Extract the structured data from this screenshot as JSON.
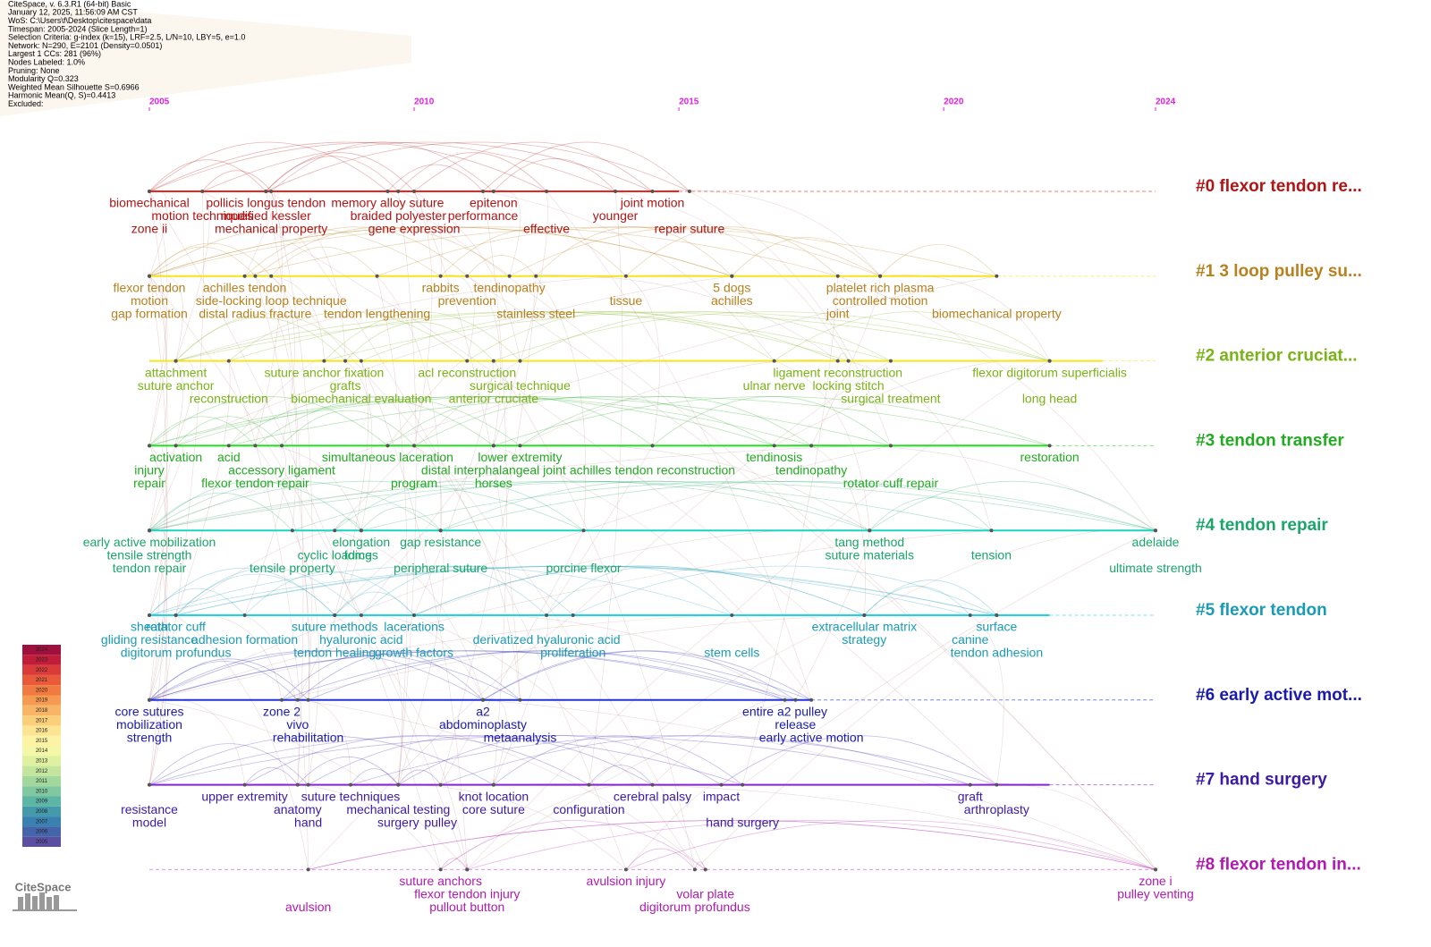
{
  "chart_data": {
    "type": "timeline",
    "info": [
      "CiteSpace, v. 6.3.R1 (64-bit) Basic",
      "January 12, 2025, 11:56:09 AM CST",
      "WoS: C:\\Users\\f\\Desktop\\citespace\\data",
      "Timespan: 2005-2024 (Slice Length=1)",
      "Selection Criteria: g-index (k=15), LRF=2.5, L/N=10, LBY=5, e=1.0",
      "Network: N=290, E=2101 (Density=0.0501)",
      "Largest 1 CCs: 281 (96%)",
      "Nodes Labeled: 1.0%",
      "Pruning: None",
      "Modularity Q=0.323",
      "Weighted Mean Silhouette S=0.6966",
      "Harmonic Mean(Q, S)=0.4413",
      "Excluded:"
    ],
    "xlim": [
      2005,
      2024
    ],
    "xticks": [
      2005,
      2010,
      2015,
      2020,
      2024
    ],
    "clusters": [
      {
        "label": "#0 flexor tendon re...",
        "color": "#b01515",
        "line_color": "#e8251f",
        "active_until": 2015,
        "terms": [
          {
            "text": "biomechanical",
            "year": 2005
          },
          {
            "text": "motion techniques",
            "year": 2006
          },
          {
            "text": "zone ii",
            "year": 2005
          },
          {
            "text": "pollicis longus tendon",
            "year": 2007.2
          },
          {
            "text": "modified kessler",
            "year": 2007.2
          },
          {
            "text": "mechanical property",
            "year": 2007.3
          },
          {
            "text": "memory alloy suture",
            "year": 2009.5
          },
          {
            "text": "braided polyester",
            "year": 2009.7
          },
          {
            "text": "gene expression",
            "year": 2010
          },
          {
            "text": "epitenon",
            "year": 2011.5
          },
          {
            "text": "performance",
            "year": 2011.3
          },
          {
            "text": "effective",
            "year": 2012.5
          },
          {
            "text": "joint motion",
            "year": 2014.5
          },
          {
            "text": "younger",
            "year": 2013.8
          },
          {
            "text": "repair suture",
            "year": 2015.2
          }
        ]
      },
      {
        "label": "#1 3 loop pulley su...",
        "color": "#b8801e",
        "line_color": "#f5e51a",
        "active_until": 2021,
        "terms": [
          {
            "text": "flexor tendon",
            "year": 2005
          },
          {
            "text": "motion",
            "year": 2005
          },
          {
            "text": "gap formation",
            "year": 2005
          },
          {
            "text": "achilles tendon",
            "year": 2006.8
          },
          {
            "text": "side-locking loop technique",
            "year": 2007.3
          },
          {
            "text": "distal radius fracture",
            "year": 2007
          },
          {
            "text": "rabbits",
            "year": 2010.5
          },
          {
            "text": "prevention",
            "year": 2011
          },
          {
            "text": "tendon lengthening",
            "year": 2009.3
          },
          {
            "text": "tendinopathy",
            "year": 2011.8
          },
          {
            "text": "tissue",
            "year": 2014
          },
          {
            "text": "stainless steel",
            "year": 2012.3
          },
          {
            "text": "platelet rich plasma",
            "year": 2018.8
          },
          {
            "text": "controlled motion",
            "year": 2018.8
          },
          {
            "text": "joint",
            "year": 2018
          },
          {
            "text": "5 dogs",
            "year": 2016
          },
          {
            "text": "achilles",
            "year": 2016
          },
          {
            "text": "biomechanical property",
            "year": 2021
          }
        ]
      },
      {
        "label": "#2 anterior cruciat...",
        "color": "#7ab317",
        "line_color": "#f5e51a",
        "active_until": 2023,
        "terms": [
          {
            "text": "attachment",
            "year": 2005.5
          },
          {
            "text": "suture anchor",
            "year": 2005.5
          },
          {
            "text": "reconstruction",
            "year": 2006.5
          },
          {
            "text": "suture anchor fixation",
            "year": 2008.3
          },
          {
            "text": "grafts",
            "year": 2008.7
          },
          {
            "text": "biomechanical evaluation",
            "year": 2009
          },
          {
            "text": "acl reconstruction",
            "year": 2011
          },
          {
            "text": "surgical technique",
            "year": 2012
          },
          {
            "text": "anterior cruciate",
            "year": 2011.5
          },
          {
            "text": "ligament reconstruction",
            "year": 2018
          },
          {
            "text": "ulnar nerve",
            "year": 2016.8
          },
          {
            "text": "surgical treatment",
            "year": 2019
          },
          {
            "text": "flexor digitorum superficialis",
            "year": 2022
          },
          {
            "text": "locking stitch",
            "year": 2018.2
          },
          {
            "text": "long head",
            "year": 2022
          }
        ]
      },
      {
        "label": "#3 tendon transfer",
        "color": "#22aa22",
        "line_color": "#22dd22",
        "active_until": 2022,
        "terms": [
          {
            "text": "activation",
            "year": 2005.5
          },
          {
            "text": "injury",
            "year": 2005
          },
          {
            "text": "repair",
            "year": 2005
          },
          {
            "text": "acid",
            "year": 2006.5
          },
          {
            "text": "accessory ligament",
            "year": 2007.5
          },
          {
            "text": "flexor tendon repair",
            "year": 2007
          },
          {
            "text": "simultaneous laceration",
            "year": 2009.5
          },
          {
            "text": "distal interphalangeal joint",
            "year": 2011.5
          },
          {
            "text": "program",
            "year": 2010
          },
          {
            "text": "lower extremity",
            "year": 2012
          },
          {
            "text": "achilles tendon reconstruction",
            "year": 2014.5
          },
          {
            "text": "horses",
            "year": 2011.5
          },
          {
            "text": "tendinosis",
            "year": 2016.8
          },
          {
            "text": "tendinopathy",
            "year": 2017.5
          },
          {
            "text": "rotator cuff repair",
            "year": 2019
          },
          {
            "text": "restoration",
            "year": 2022
          }
        ]
      },
      {
        "label": "#4 tendon repair",
        "color": "#1aa56a",
        "line_color": "#1ad6c0",
        "active_until": 2024,
        "terms": [
          {
            "text": "early active mobilization",
            "year": 2005
          },
          {
            "text": "tensile strength",
            "year": 2005
          },
          {
            "text": "tendon repair",
            "year": 2005
          },
          {
            "text": "elongation",
            "year": 2009
          },
          {
            "text": "forces",
            "year": 2009
          },
          {
            "text": "tensile property",
            "year": 2007.7
          },
          {
            "text": "gap resistance",
            "year": 2010.5
          },
          {
            "text": "cyclic loading",
            "year": 2008.5
          },
          {
            "text": "peripheral suture",
            "year": 2010.5
          },
          {
            "text": "tang method",
            "year": 2018.6
          },
          {
            "text": "suture materials",
            "year": 2018.6
          },
          {
            "text": "porcine flexor",
            "year": 2013.2
          },
          {
            "text": "adelaide",
            "year": 2024
          },
          {
            "text": "tension",
            "year": 2020.9
          },
          {
            "text": "ultimate strength",
            "year": 2024
          }
        ]
      },
      {
        "label": "#5 flexor tendon",
        "color": "#1a9bb5",
        "line_color": "#1ad6e8",
        "active_until": 2022,
        "terms": [
          {
            "text": "sheath",
            "year": 2005
          },
          {
            "text": "gliding resistance",
            "year": 2005
          },
          {
            "text": "digitorum profundus",
            "year": 2005.5
          },
          {
            "text": "rotator cuff",
            "year": 2005.5
          },
          {
            "text": "adhesion formation",
            "year": 2006.8
          },
          {
            "text": "tendon healing",
            "year": 2008.5
          },
          {
            "text": "suture methods",
            "year": 2008.5
          },
          {
            "text": "hyaluronic acid",
            "year": 2009
          },
          {
            "text": "growth factors",
            "year": 2010
          },
          {
            "text": "lacerations",
            "year": 2010
          },
          {
            "text": "derivatized hyaluronic acid",
            "year": 2012.5
          },
          {
            "text": "proliferation",
            "year": 2013
          },
          {
            "text": "extracellular matrix",
            "year": 2018.5
          },
          {
            "text": "strategy",
            "year": 2018.5
          },
          {
            "text": "stem cells",
            "year": 2016
          },
          {
            "text": "surface",
            "year": 2021
          },
          {
            "text": "canine",
            "year": 2020.5
          },
          {
            "text": "tendon adhesion",
            "year": 2021
          }
        ]
      },
      {
        "label": "#6 early active mot...",
        "color": "#1a1ab0",
        "line_color": "#2233dd",
        "active_until": 2017.5,
        "terms": [
          {
            "text": "core sutures",
            "year": 2005
          },
          {
            "text": "mobilization",
            "year": 2005
          },
          {
            "text": "strength",
            "year": 2005
          },
          {
            "text": "zone 2",
            "year": 2007.5
          },
          {
            "text": "vivo",
            "year": 2007.8
          },
          {
            "text": "rehabilitation",
            "year": 2008
          },
          {
            "text": "a2",
            "year": 2011.3
          },
          {
            "text": "abdominoplasty",
            "year": 2011.3
          },
          {
            "text": "metaanalysis",
            "year": 2012
          },
          {
            "text": "entire a2 pulley",
            "year": 2017
          },
          {
            "text": "release",
            "year": 2017.2
          },
          {
            "text": "early active motion",
            "year": 2017.5
          }
        ]
      },
      {
        "label": "#7 hand surgery",
        "color": "#3b1aa8",
        "line_color": "#8822dd",
        "active_until": 2022,
        "terms": [
          {
            "text": "upper extremity",
            "year": 2006.8
          },
          {
            "text": "resistance",
            "year": 2005
          },
          {
            "text": "model",
            "year": 2005
          },
          {
            "text": "suture techniques",
            "year": 2008.8
          },
          {
            "text": "anatomy",
            "year": 2007.8
          },
          {
            "text": "hand",
            "year": 2008
          },
          {
            "text": "knot location",
            "year": 2011.5
          },
          {
            "text": "mechanical testing",
            "year": 2009.7
          },
          {
            "text": "surgery",
            "year": 2009.7
          },
          {
            "text": "cerebral palsy",
            "year": 2014.5
          },
          {
            "text": "core suture",
            "year": 2011.5
          },
          {
            "text": "pulley",
            "year": 2010.5
          },
          {
            "text": "impact",
            "year": 2015.8
          },
          {
            "text": "configuration",
            "year": 2013.3
          },
          {
            "text": "hand surgery",
            "year": 2016.2
          },
          {
            "text": "graft",
            "year": 2020.5
          },
          {
            "text": "arthroplasty",
            "year": 2021
          }
        ]
      },
      {
        "label": "#8 flexor tendon in...",
        "color": "#b01ab0",
        "line_color": "#dd44dd",
        "active_until": 2005,
        "terms": [
          {
            "text": "suture anchors",
            "year": 2010.5
          },
          {
            "text": "flexor tendon injury",
            "year": 2011
          },
          {
            "text": "avulsion",
            "year": 2008
          },
          {
            "text": "avulsion injury",
            "year": 2014
          },
          {
            "text": "volar plate",
            "year": 2015.5
          },
          {
            "text": "pullout button",
            "year": 2011
          },
          {
            "text": "zone i",
            "year": 2024
          },
          {
            "text": "pulley venting",
            "year": 2024
          },
          {
            "text": "digitorum profundus",
            "year": 2015.3
          }
        ]
      }
    ],
    "year_legend": {
      "years": [
        2024,
        2023,
        2022,
        2021,
        2020,
        2019,
        2018,
        2017,
        2016,
        2015,
        2014,
        2013,
        2012,
        2011,
        2010,
        2009,
        2008,
        2007,
        2006,
        2005
      ],
      "colors": [
        "#a0103e",
        "#c01d3a",
        "#d93a3a",
        "#e85a3a",
        "#f07a40",
        "#f59a50",
        "#f8b565",
        "#fbcf7a",
        "#fde492",
        "#fef3a5",
        "#f4f7a5",
        "#dff0a0",
        "#c4e59d",
        "#a3d89c",
        "#7fc8a0",
        "#5db5a5",
        "#449aaa",
        "#3a80b0",
        "#4465aa",
        "#5a4fa0"
      ]
    },
    "logo": "CiteSpace"
  }
}
